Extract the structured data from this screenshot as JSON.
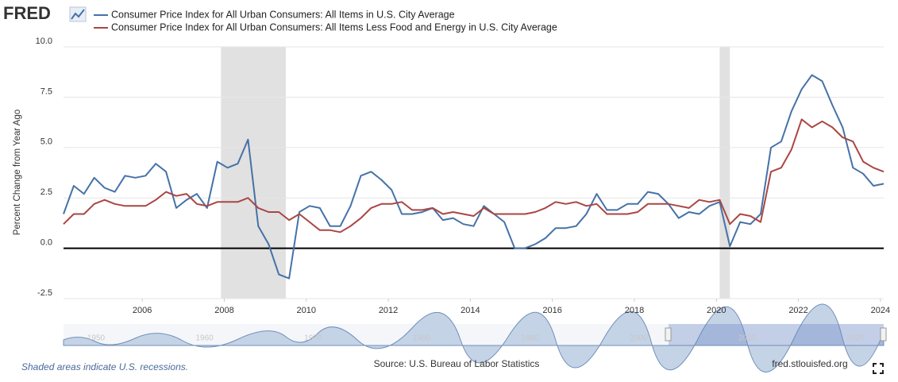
{
  "chart_data": {
    "type": "line",
    "logo": "FRED",
    "ylabel": "Percent Change from Year Ago",
    "note": "Shaded areas indicate U.S. recessions.",
    "source": "Source: U.S. Bureau of Labor Statistics",
    "site": "fred.stlouisfed.org",
    "x": [
      2004.08,
      2004.33,
      2004.58,
      2004.83,
      2005.08,
      2005.33,
      2005.58,
      2005.83,
      2006.08,
      2006.33,
      2006.58,
      2006.83,
      2007.08,
      2007.33,
      2007.58,
      2007.83,
      2008.08,
      2008.33,
      2008.58,
      2008.83,
      2009.08,
      2009.33,
      2009.58,
      2009.83,
      2010.08,
      2010.33,
      2010.58,
      2010.83,
      2011.08,
      2011.33,
      2011.58,
      2011.83,
      2012.08,
      2012.33,
      2012.58,
      2012.83,
      2013.08,
      2013.33,
      2013.58,
      2013.83,
      2014.08,
      2014.33,
      2014.58,
      2014.83,
      2015.08,
      2015.33,
      2015.58,
      2015.83,
      2016.08,
      2016.33,
      2016.58,
      2016.83,
      2017.08,
      2017.33,
      2017.58,
      2017.83,
      2018.08,
      2018.33,
      2018.58,
      2018.83,
      2019.08,
      2019.33,
      2019.58,
      2019.83,
      2020.08,
      2020.33,
      2020.58,
      2020.83,
      2021.08,
      2021.33,
      2021.58,
      2021.83,
      2022.08,
      2022.33,
      2022.58,
      2022.83,
      2023.08,
      2023.33,
      2023.58,
      2023.83,
      2024.08
    ],
    "series": [
      {
        "name": "Consumer Price Index for All Urban Consumers: All Items in U.S. City Average",
        "color": "#4572a7",
        "values": [
          1.7,
          3.1,
          2.7,
          3.5,
          3.0,
          2.8,
          3.6,
          3.5,
          3.6,
          4.2,
          3.8,
          2.0,
          2.4,
          2.7,
          2.0,
          4.3,
          4.0,
          4.2,
          5.4,
          1.1,
          0.2,
          -1.3,
          -1.5,
          1.8,
          2.1,
          2.0,
          1.1,
          1.1,
          2.1,
          3.6,
          3.8,
          3.4,
          2.9,
          1.7,
          1.7,
          1.8,
          2.0,
          1.4,
          1.5,
          1.2,
          1.1,
          2.1,
          1.7,
          1.3,
          0.0,
          0.0,
          0.2,
          0.5,
          1.0,
          1.0,
          1.1,
          1.7,
          2.7,
          1.9,
          1.9,
          2.2,
          2.2,
          2.8,
          2.7,
          2.2,
          1.5,
          1.8,
          1.7,
          2.1,
          2.3,
          0.1,
          1.3,
          1.2,
          1.7,
          5.0,
          5.3,
          6.8,
          7.9,
          8.6,
          8.3,
          7.1,
          6.0,
          4.0,
          3.7,
          3.1,
          3.2
        ]
      },
      {
        "name": "Consumer Price Index for All Urban Consumers: All Items Less Food and Energy in U.S. City Average",
        "color": "#aa4643",
        "values": [
          1.2,
          1.7,
          1.7,
          2.2,
          2.4,
          2.2,
          2.1,
          2.1,
          2.1,
          2.4,
          2.8,
          2.6,
          2.7,
          2.2,
          2.1,
          2.3,
          2.3,
          2.3,
          2.5,
          2.0,
          1.8,
          1.8,
          1.4,
          1.7,
          1.3,
          0.9,
          0.9,
          0.8,
          1.1,
          1.5,
          2.0,
          2.2,
          2.2,
          2.3,
          1.9,
          1.9,
          2.0,
          1.7,
          1.8,
          1.7,
          1.6,
          2.0,
          1.7,
          1.7,
          1.7,
          1.7,
          1.8,
          2.0,
          2.3,
          2.2,
          2.3,
          2.1,
          2.2,
          1.7,
          1.7,
          1.7,
          1.8,
          2.2,
          2.2,
          2.2,
          2.1,
          2.0,
          2.4,
          2.3,
          2.4,
          1.2,
          1.7,
          1.6,
          1.3,
          3.8,
          4.0,
          4.9,
          6.4,
          6.0,
          6.3,
          6.0,
          5.5,
          5.3,
          4.3,
          4.0,
          3.8
        ]
      }
    ],
    "recessions": [
      [
        2007.92,
        2009.5
      ],
      [
        2020.08,
        2020.33
      ]
    ],
    "xlim": [
      2004.08,
      2024.08
    ],
    "xticks": [
      2006,
      2008,
      2010,
      2012,
      2014,
      2016,
      2018,
      2020,
      2022,
      2024
    ],
    "ylim": [
      -2.5,
      10
    ],
    "yticks": [
      {
        "value": 10,
        "label": "10.0"
      },
      7.5,
      {
        "value": 5,
        "label": "5.0"
      },
      2.5,
      {
        "value": 0,
        "label": "0.0"
      },
      -2.5
    ],
    "baseline": 0,
    "grid": true,
    "navigator": {
      "xlim": [
        1947,
        2022.6
      ],
      "xticks": [
        1950,
        1960,
        1970,
        1980,
        1990,
        2000,
        2010,
        2020
      ]
    }
  }
}
